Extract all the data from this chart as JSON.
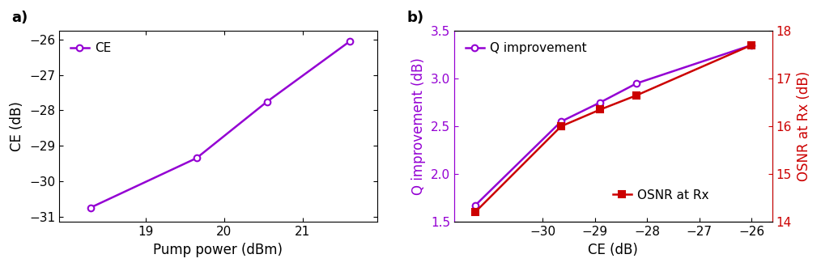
{
  "panel_a": {
    "pump_power": [
      18.3,
      19.65,
      20.55,
      21.6
    ],
    "CE": [
      -30.75,
      -29.35,
      -27.75,
      -26.05
    ],
    "xlabel": "Pump power (dBm)",
    "ylabel": "CE (dB)",
    "xlim": [
      17.9,
      21.95
    ],
    "ylim": [
      -31.15,
      -25.75
    ],
    "yticks": [
      -31,
      -30,
      -29,
      -28,
      -27,
      -26
    ],
    "xticks": [
      19,
      20,
      21
    ],
    "line_color": "#9400D3",
    "marker": "o",
    "label": "CE",
    "markersize": 5.5
  },
  "panel_b": {
    "CE_x": [
      -31.3,
      -29.65,
      -28.9,
      -28.2,
      -26.0
    ],
    "Q_improvement": [
      1.67,
      2.55,
      2.75,
      2.95,
      3.35
    ],
    "OSNR_at_Rx": [
      14.2,
      16.0,
      16.35,
      16.65,
      17.7
    ],
    "xlabel": "CE (dB)",
    "ylabel_left": "Q improvement (dB)",
    "ylabel_right": "OSNR at Rx (dB)",
    "xlim": [
      -31.7,
      -25.6
    ],
    "ylim_left": [
      1.5,
      3.5
    ],
    "ylim_right": [
      14.0,
      18.0
    ],
    "yticks_left": [
      1.5,
      2.0,
      2.5,
      3.0,
      3.5
    ],
    "yticks_right": [
      14,
      15,
      16,
      17,
      18
    ],
    "xticks": [
      -30,
      -29,
      -28,
      -27,
      -26
    ],
    "Q_color": "#9400D3",
    "OSNR_color": "#CC0000",
    "Q_marker": "o",
    "OSNR_marker": "s",
    "Q_label": "Q improvement",
    "OSNR_label": "OSNR at Rx",
    "markersize": 5.5
  },
  "label_a": "a)",
  "label_b": "b)"
}
